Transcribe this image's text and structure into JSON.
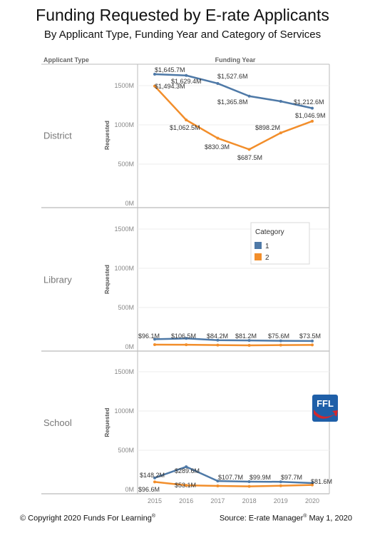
{
  "header": {
    "title": "Funding Requested by E-rate Applicants",
    "subtitle": "By Applicant Type, Funding Year and Category of Services"
  },
  "footer": {
    "copyright": "© Copyright 2020 Funds For Learning",
    "copyright_mark": "®",
    "source_prefix": "Source: E-rate Manager",
    "source_mark": "®",
    "source_date": " May 1, 2020"
  },
  "logo": {
    "text": "FFL",
    "colors": {
      "blue": "#1f5fa8",
      "red": "#d2272d"
    }
  },
  "colors": {
    "series1": "#4e79a7",
    "series2": "#f28e2b",
    "grid": "#eeeeee",
    "divider": "#bbbbbb"
  },
  "chart_data": {
    "type": "line",
    "column_header_left": "Applicant Type",
    "column_header_center": "Funding Year",
    "x": [
      2015,
      2016,
      2017,
      2018,
      2019,
      2020
    ],
    "ylabel": "Requested",
    "y_ticks": [
      "0M",
      "500M",
      "1000M",
      "1500M"
    ],
    "ylim": [
      0,
      1700
    ],
    "legend": {
      "title": "Category",
      "items": [
        "1",
        "2"
      ],
      "placement": "right, Library panel"
    },
    "panels": [
      {
        "name": "District",
        "series": [
          {
            "name": "1",
            "values": [
              1645.7,
              1629.4,
              1527.6,
              1365.8,
              1300,
              1212.6
            ],
            "labels": [
              "$1,645.7M",
              "$1,629.4M",
              "$1,527.6M",
              "$1,365.8M",
              "",
              "$1,212.6M"
            ]
          },
          {
            "name": "2",
            "values": [
              1494.3,
              1062.5,
              830.3,
              687.5,
              898.2,
              1046.9
            ],
            "labels": [
              "$1,494.3M",
              "$1,062.5M",
              "$830.3M",
              "$687.5M",
              "$898.2M",
              "$1,046.9M"
            ]
          }
        ]
      },
      {
        "name": "Library",
        "series": [
          {
            "name": "1",
            "values": [
              96.1,
              106.5,
              84.2,
              81.2,
              75.6,
              73.5
            ],
            "labels": [
              "$96.1M",
              "$106.5M",
              "$84.2M",
              "$81.2M",
              "$75.6M",
              "$73.5M"
            ]
          },
          {
            "name": "2",
            "values": [
              27,
              26,
              22,
              18,
              22,
              24
            ],
            "labels": [
              "",
              "",
              "",
              "",
              "",
              ""
            ]
          }
        ]
      },
      {
        "name": "School",
        "series": [
          {
            "name": "1",
            "values": [
              148.2,
              289.6,
              107.7,
              99.9,
              97.7,
              81.6
            ],
            "labels": [
              "$148.2M",
              "$289.6M",
              "$107.7M",
              "$99.9M",
              "$97.7M",
              "$81.6M"
            ]
          },
          {
            "name": "2",
            "values": [
              96.6,
              53.1,
              45,
              40,
              48,
              58
            ],
            "labels": [
              "$96.6M",
              "$53.1M",
              "",
              "",
              "",
              ""
            ]
          }
        ]
      }
    ]
  }
}
